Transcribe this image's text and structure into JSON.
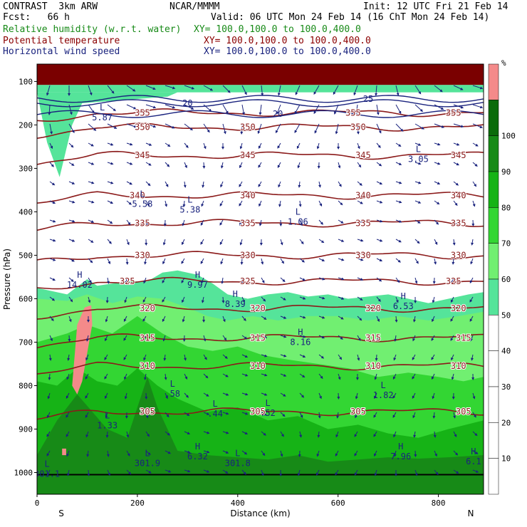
{
  "header": {
    "model": "CONTRAST  3km ARW",
    "org": "NCAR/MMMM",
    "init": "Init: 12 UTC Fri 21 Feb 14",
    "fcst": "Fcst:   66 h",
    "valid": "Valid: 06 UTC Mon 24 Feb 14 (16 ChT Mon 24 Feb 14)",
    "fields": [
      {
        "name": "Relative humidity (w.r.t. water)",
        "xy": "XY= 100.0,100.0 to 100.0,400.0",
        "color": "#178a17"
      },
      {
        "name": "Potential temperature",
        "xy": "XY= 100.0,100.0 to 100.0,400.0",
        "color": "#8b0000"
      },
      {
        "name": "Horizontal wind speed",
        "xy": "XY= 100.0,100.0 to 100.0,400.0",
        "color": "#1a237e"
      }
    ]
  },
  "chart_data": {
    "type": "heatmap",
    "xlabel": "Distance (km)",
    "ylabel": "Pressure (hPa)",
    "xlim": [
      0,
      890
    ],
    "ylim": [
      1050,
      60
    ],
    "x_ticks": [
      "0",
      "200",
      "400",
      "600",
      "800"
    ],
    "y_ticks": [
      "100",
      "200",
      "300",
      "400",
      "500",
      "600",
      "700",
      "800",
      "900",
      "1000"
    ],
    "x_end_labels": {
      "left": "S",
      "right": "N"
    },
    "colorbar": {
      "unit": "%",
      "levels": [
        "10",
        "20",
        "30",
        "40",
        "50",
        "60",
        "70",
        "80",
        "90",
        "100"
      ],
      "colors": [
        "#ffffff",
        "#ffffff",
        "#ffffff",
        "#ffffff",
        "#ffffff",
        "#55e49a",
        "#71ef71",
        "#33d633",
        "#16b316",
        "#178a17",
        "#0b6b0b",
        "#f48a8a"
      ]
    },
    "rh_bands": [
      {
        "rh": 55,
        "color": "#55e49a",
        "top": [
          [
            0,
            575
          ],
          [
            60,
            590
          ],
          [
            100,
            555
          ],
          [
            120,
            570
          ],
          [
            150,
            565
          ],
          [
            180,
            560
          ],
          [
            220,
            560
          ],
          [
            250,
            540
          ],
          [
            280,
            535
          ],
          [
            320,
            545
          ],
          [
            350,
            565
          ],
          [
            380,
            590
          ],
          [
            420,
            600
          ],
          [
            460,
            590
          ],
          [
            500,
            585
          ],
          [
            540,
            595
          ],
          [
            580,
            590
          ],
          [
            620,
            600
          ],
          [
            660,
            595
          ],
          [
            700,
            590
          ],
          [
            740,
            600
          ],
          [
            780,
            610
          ],
          [
            820,
            600
          ],
          [
            860,
            590
          ],
          [
            890,
            585
          ]
        ]
      },
      {
        "rh": 65,
        "color": "#71ef71",
        "top": [
          [
            0,
            600
          ],
          [
            60,
            605
          ],
          [
            100,
            590
          ],
          [
            150,
            610
          ],
          [
            200,
            595
          ],
          [
            250,
            600
          ],
          [
            300,
            620
          ],
          [
            340,
            640
          ],
          [
            380,
            650
          ],
          [
            430,
            640
          ],
          [
            480,
            650
          ],
          [
            540,
            640
          ],
          [
            600,
            640
          ],
          [
            660,
            650
          ],
          [
            720,
            640
          ],
          [
            780,
            650
          ],
          [
            840,
            640
          ],
          [
            890,
            630
          ]
        ]
      },
      {
        "rh": 75,
        "color": "#33d633",
        "top": [
          [
            0,
            700
          ],
          [
            60,
            680
          ],
          [
            100,
            660
          ],
          [
            150,
            680
          ],
          [
            200,
            640
          ],
          [
            250,
            680
          ],
          [
            300,
            710
          ],
          [
            350,
            720
          ],
          [
            400,
            710
          ],
          [
            450,
            730
          ],
          [
            500,
            740
          ],
          [
            560,
            750
          ],
          [
            620,
            760
          ],
          [
            680,
            780
          ],
          [
            740,
            770
          ],
          [
            800,
            780
          ],
          [
            850,
            790
          ],
          [
            890,
            780
          ]
        ]
      },
      {
        "rh": 85,
        "color": "#16b316",
        "top": [
          [
            0,
            790
          ],
          [
            40,
            800
          ],
          [
            80,
            760
          ],
          [
            120,
            790
          ],
          [
            160,
            800
          ],
          [
            200,
            760
          ],
          [
            240,
            800
          ],
          [
            280,
            830
          ],
          [
            340,
            860
          ],
          [
            400,
            850
          ],
          [
            460,
            880
          ],
          [
            520,
            870
          ],
          [
            580,
            900
          ],
          [
            640,
            890
          ],
          [
            700,
            910
          ],
          [
            760,
            920
          ],
          [
            820,
            900
          ],
          [
            890,
            880
          ]
        ]
      },
      {
        "rh": 95,
        "color": "#178a17",
        "top": [
          [
            0,
            960
          ],
          [
            40,
            880
          ],
          [
            80,
            820
          ],
          [
            110,
            860
          ],
          [
            140,
            900
          ],
          [
            180,
            920
          ],
          [
            220,
            780
          ],
          [
            240,
            850
          ],
          [
            280,
            950
          ],
          [
            340,
            960
          ],
          [
            400,
            965
          ],
          [
            460,
            970
          ],
          [
            520,
            960
          ],
          [
            580,
            975
          ],
          [
            640,
            970
          ],
          [
            700,
            965
          ],
          [
            760,
            968
          ],
          [
            820,
            965
          ],
          [
            890,
            960
          ]
        ]
      }
    ],
    "saturated_regions": [
      {
        "rh": 100,
        "color": "#f48a8a",
        "points": [
          [
            80,
            660
          ],
          [
            95,
            620
          ],
          [
            108,
            615
          ],
          [
            110,
            660
          ],
          [
            90,
            790
          ],
          [
            80,
            820
          ],
          [
            70,
            800
          ]
        ]
      },
      {
        "rh": 100,
        "color": "#f48a8a",
        "points": [
          [
            50,
            945
          ],
          [
            58,
            945
          ],
          [
            58,
            960
          ],
          [
            50,
            960
          ]
        ]
      }
    ],
    "theta_contours": [
      {
        "label": "355",
        "p": 172,
        "label_x": [
          210,
          630,
          830
        ]
      },
      {
        "label": "350",
        "p": 205,
        "label_x": [
          210,
          420,
          640
        ]
      },
      {
        "label": "345",
        "p": 270,
        "label_x": [
          210,
          420,
          650,
          840
        ]
      },
      {
        "label": "340",
        "p": 362,
        "label_x": [
          200,
          420,
          650,
          840
        ]
      },
      {
        "label": "335",
        "p": 426,
        "label_x": [
          210,
          420,
          650,
          840
        ]
      },
      {
        "label": "330",
        "p": 500,
        "label_x": [
          210,
          420,
          650,
          840
        ]
      },
      {
        "label": "325",
        "p": 560,
        "label_x": [
          180,
          420,
          830
        ]
      },
      {
        "label": "320",
        "p": 622,
        "label_x": [
          220,
          440,
          670,
          840
        ]
      },
      {
        "label": "315",
        "p": 690,
        "label_x": [
          220,
          440,
          670,
          850
        ]
      },
      {
        "label": "310",
        "p": 755,
        "label_x": [
          220,
          440,
          670,
          840
        ]
      },
      {
        "label": "305",
        "p": 860,
        "label_x": [
          220,
          440,
          640,
          850
        ]
      }
    ],
    "wind_contours": [
      {
        "label": "20",
        "p": 150
      },
      {
        "label": "20",
        "p": 175
      },
      {
        "label": "25",
        "p": 140
      }
    ],
    "pressure_extrema": [
      {
        "type": "L",
        "value": "5.87",
        "x": 130,
        "p": 183
      },
      {
        "type": "L",
        "value": "5.58",
        "x": 210,
        "p": 382
      },
      {
        "type": "L",
        "value": "5.38",
        "x": 305,
        "p": 395
      },
      {
        "type": "L",
        "value": "1.06",
        "x": 520,
        "p": 423
      },
      {
        "type": "L",
        "value": "3.05",
        "x": 760,
        "p": 279
      },
      {
        "type": "H",
        "value": "14.02",
        "x": 85,
        "p": 568
      },
      {
        "type": "H",
        "value": "9.97",
        "x": 320,
        "p": 568
      },
      {
        "type": "H",
        "value": "8.39",
        "x": 395,
        "p": 612
      },
      {
        "type": "H",
        "value": "6.53",
        "x": 730,
        "p": 617
      },
      {
        "type": "H",
        "value": "8.16",
        "x": 525,
        "p": 700
      },
      {
        "type": "L",
        "value": ".58",
        "x": 270,
        "p": 819
      },
      {
        "type": "L",
        "value": "1.82",
        "x": 690,
        "p": 822
      },
      {
        "type": "L",
        "value": ".44",
        "x": 355,
        "p": 865
      },
      {
        "type": "L",
        "value": ".52",
        "x": 460,
        "p": 863
      },
      {
        "type": "L",
        "value": "1.33",
        "x": 140,
        "p": 892
      },
      {
        "type": "H",
        "value": "6.32",
        "x": 320,
        "p": 963
      },
      {
        "type": "L",
        "value": "301.9",
        "x": 220,
        "p": 979
      },
      {
        "type": "L",
        "value": "301.8",
        "x": 400,
        "p": 979
      },
      {
        "type": "H",
        "value": "7.96",
        "x": 725,
        "p": 963
      },
      {
        "type": "H",
        "value": "6.1",
        "x": 870,
        "p": 975
      },
      {
        "type": "L",
        "value": "301.1",
        "x": 20,
        "p": 1003
      }
    ]
  }
}
